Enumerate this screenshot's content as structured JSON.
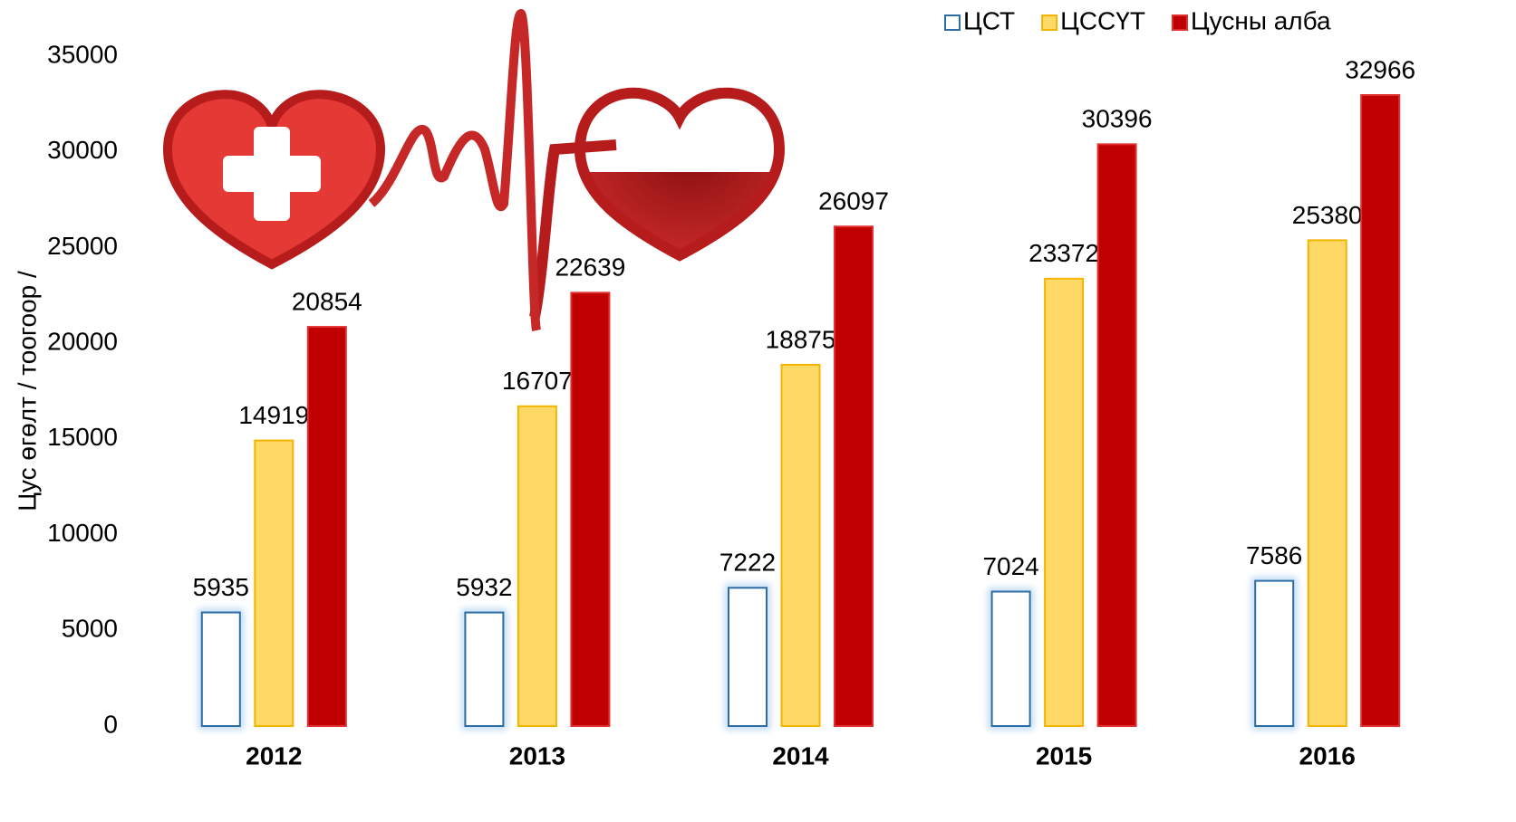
{
  "chart_data": {
    "type": "bar",
    "y_label": "Цус өгөлт / тоогоор /",
    "categories": [
      "2012",
      "2013",
      "2014",
      "2015",
      "2016"
    ],
    "series": [
      {
        "name": "ЦСТ",
        "color": "#ffffff",
        "edgecolor": "#2e6da4",
        "values": [
          5935,
          5932,
          7222,
          7024,
          7586
        ]
      },
      {
        "name": "ЦССҮТ",
        "color": "#ffd966",
        "edgecolor": "#f4b400",
        "values": [
          14919,
          16707,
          18875,
          23372,
          25380
        ]
      },
      {
        "name": "Цусны алба",
        "color": "#c00000",
        "edgecolor": "#e03030",
        "values": [
          20854,
          22639,
          26097,
          30396,
          32966
        ]
      }
    ],
    "ylim": [
      0,
      35000
    ],
    "yticks": [
      0,
      5000,
      10000,
      15000,
      20000,
      25000,
      30000,
      35000
    ],
    "grid": false,
    "legend": "top-right"
  }
}
